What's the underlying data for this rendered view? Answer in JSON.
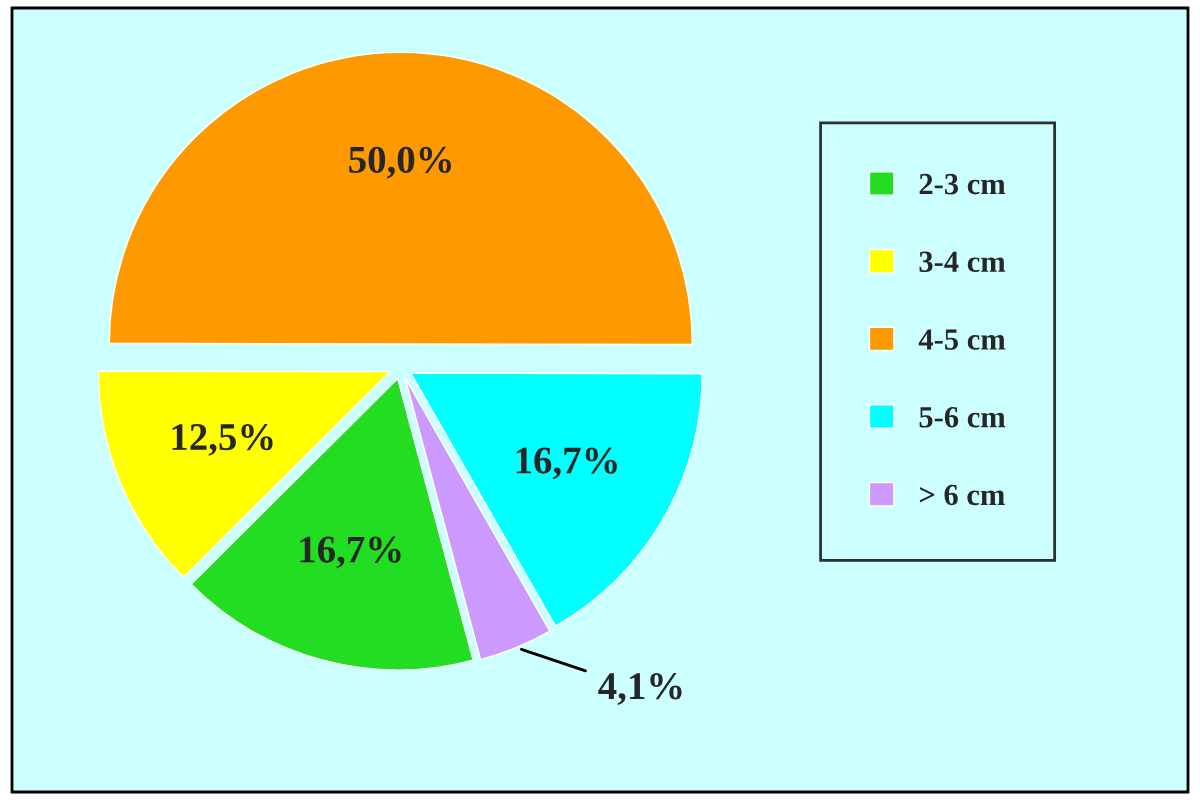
{
  "chart_data": {
    "type": "pie",
    "categories": [
      "2-3 cm",
      "3-4 cm",
      "4-5 cm",
      "5-6 cm",
      "> 6 cm"
    ],
    "values": [
      16.7,
      12.5,
      50.0,
      16.7,
      4.1
    ],
    "value_labels": [
      "16,7%",
      "12,5%",
      "50,0%",
      "16,7%",
      "4,1%"
    ],
    "colors": [
      "#22dd22",
      "#ffff00",
      "#ff9900",
      "#00ffff",
      "#cc99ff"
    ],
    "legend": "right"
  }
}
